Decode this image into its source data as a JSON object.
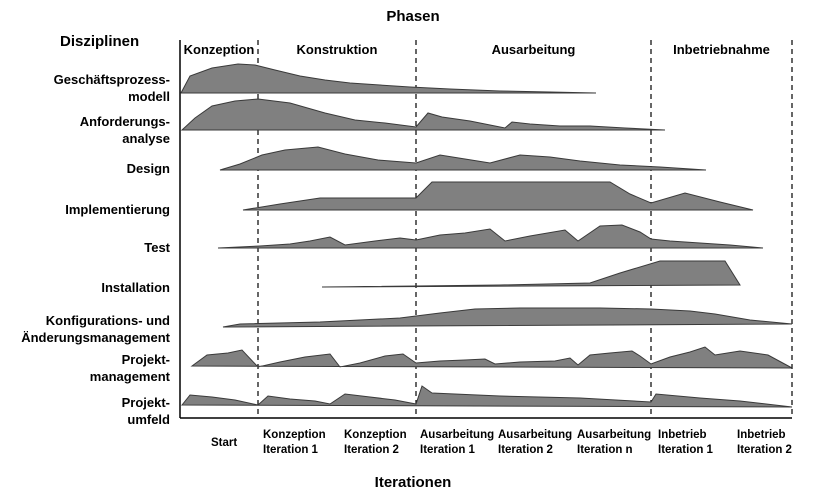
{
  "header": {
    "phases_title": "Phasen",
    "disciplines_title": "Disziplinen",
    "iterations_title": "Iterationen"
  },
  "phases": [
    "Konzeption",
    "Konstruktion",
    "Ausarbeitung",
    "Inbetriebnahme"
  ],
  "disciplines": [
    {
      "line1": "Geschäftsprozess-",
      "line2": "modell"
    },
    {
      "line1": "Anforderungs-",
      "line2": "analyse"
    },
    {
      "line1": "Design",
      "line2": ""
    },
    {
      "line1": "Implementierung",
      "line2": ""
    },
    {
      "line1": "Test",
      "line2": ""
    },
    {
      "line1": "Installation",
      "line2": ""
    },
    {
      "line1": "Konfigurations- und",
      "line2": "Änderungsmanagement"
    },
    {
      "line1": "Projekt-",
      "line2": "management"
    },
    {
      "line1": "Projekt-",
      "line2": "umfeld"
    }
  ],
  "iterations": [
    {
      "line1": "Start",
      "line2": ""
    },
    {
      "line1": "Konzeption",
      "line2": "Iteration 1"
    },
    {
      "line1": "Konzeption",
      "line2": "Iteration 2"
    },
    {
      "line1": "Ausarbeitung",
      "line2": "Iteration 1"
    },
    {
      "line1": "Ausarbeitung",
      "line2": "Iteration 2"
    },
    {
      "line1": "Ausarbeitung",
      "line2": "Iteration n"
    },
    {
      "line1": "Inbetrieb",
      "line2": "Iteration 1"
    },
    {
      "line1": "Inbetrieb",
      "line2": "Iteration 2"
    }
  ],
  "colors": {
    "hump_fill": "#808080",
    "hump_stroke": "#3a3a3a",
    "divider": "#000000"
  }
}
